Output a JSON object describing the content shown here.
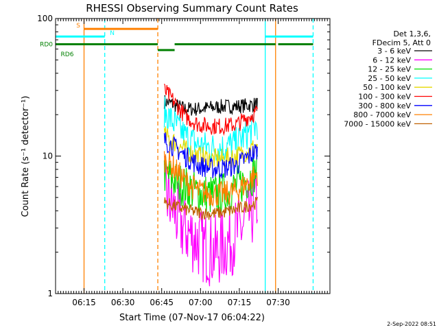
{
  "chart_data": {
    "type": "line",
    "title": "RHESSI Observing Summary Count Rates",
    "xlabel": "Start Time (07-Nov-17 06:04:22)",
    "ylabel": "Count Rate (s⁻¹ detector⁻¹)",
    "yscale": "log",
    "ylim": [
      1,
      100
    ],
    "xlim_minutes_after_0604": [
      0,
      106
    ],
    "x_ticks": [
      {
        "label": "06:15",
        "min": 11
      },
      {
        "label": "06:30",
        "min": 26
      },
      {
        "label": "06:45",
        "min": 41
      },
      {
        "label": "07:00",
        "min": 56
      },
      {
        "label": "07:15",
        "min": 71
      },
      {
        "label": "07:30",
        "min": 86
      }
    ],
    "y_ticks": [
      {
        "label": "1",
        "value": 1
      },
      {
        "label": "10",
        "value": 10
      },
      {
        "label": "100",
        "value": 100
      }
    ],
    "legend_header": [
      "Det 1,3,6,",
      "FDecim 5, Att 0"
    ],
    "legend_position": "right",
    "series": [
      {
        "name": "3 - 6 keV",
        "color": "#000000",
        "values": [
          [
            42,
            25
          ],
          [
            45,
            24
          ],
          [
            50,
            22
          ],
          [
            55,
            22
          ],
          [
            60,
            22.5
          ],
          [
            65,
            23
          ],
          [
            70,
            23
          ],
          [
            75,
            23.5
          ],
          [
            78,
            24
          ]
        ]
      },
      {
        "name": "6 - 12 keV",
        "color": "#ff00ff",
        "values": [
          [
            42,
            5.5
          ],
          [
            45,
            4.4
          ],
          [
            48,
            3.2
          ],
          [
            52,
            2.7
          ],
          [
            57,
            2.2
          ],
          [
            62,
            2.0
          ],
          [
            67,
            2.4
          ],
          [
            72,
            3.0
          ],
          [
            76,
            4.0
          ],
          [
            78,
            4.8
          ]
        ]
      },
      {
        "name": "12 - 25 keV",
        "color": "#00e000",
        "values": [
          [
            42,
            7.5
          ],
          [
            45,
            6.8
          ],
          [
            50,
            6.0
          ],
          [
            55,
            5.4
          ],
          [
            60,
            5.2
          ],
          [
            65,
            5.4
          ],
          [
            70,
            6.0
          ],
          [
            75,
            7.0
          ],
          [
            78,
            8.0
          ]
        ]
      },
      {
        "name": "25 - 50 keV",
        "color": "#00ffff",
        "values": [
          [
            42,
            21
          ],
          [
            45,
            18
          ],
          [
            50,
            14
          ],
          [
            55,
            12
          ],
          [
            60,
            11.5
          ],
          [
            65,
            11.5
          ],
          [
            70,
            12.5
          ],
          [
            75,
            15
          ],
          [
            78,
            17
          ]
        ]
      },
      {
        "name": "50 - 100 keV",
        "color": "#e6d800",
        "values": [
          [
            42,
            14
          ],
          [
            45,
            13
          ],
          [
            50,
            11
          ],
          [
            55,
            10
          ],
          [
            60,
            9.5
          ],
          [
            65,
            9.5
          ],
          [
            70,
            10
          ],
          [
            75,
            11
          ],
          [
            78,
            12
          ]
        ]
      },
      {
        "name": "100 - 300 keV",
        "color": "#ff0000",
        "values": [
          [
            42,
            30
          ],
          [
            45,
            26
          ],
          [
            50,
            19.5
          ],
          [
            55,
            17
          ],
          [
            60,
            16.5
          ],
          [
            65,
            16.5
          ],
          [
            70,
            17
          ],
          [
            75,
            19.5
          ],
          [
            78,
            21
          ]
        ]
      },
      {
        "name": "300 - 800 keV",
        "color": "#0000ff",
        "values": [
          [
            42,
            13
          ],
          [
            45,
            12
          ],
          [
            50,
            10
          ],
          [
            55,
            8.6
          ],
          [
            60,
            8.1
          ],
          [
            65,
            8.1
          ],
          [
            70,
            8.6
          ],
          [
            75,
            10
          ],
          [
            78,
            11
          ]
        ]
      },
      {
        "name": "800 - 7000 keV",
        "color": "#ff8000",
        "values": [
          [
            42,
            9.5
          ],
          [
            45,
            8.5
          ],
          [
            50,
            6.6
          ],
          [
            55,
            5.6
          ],
          [
            60,
            5.3
          ],
          [
            65,
            5.3
          ],
          [
            70,
            5.6
          ],
          [
            75,
            6.6
          ],
          [
            78,
            7.5
          ]
        ]
      },
      {
        "name": "7000 - 15000 keV",
        "color": "#c06000",
        "values": [
          [
            42,
            4.6
          ],
          [
            45,
            4.4
          ],
          [
            50,
            4.1
          ],
          [
            55,
            3.9
          ],
          [
            60,
            3.8
          ],
          [
            65,
            3.9
          ],
          [
            70,
            4.1
          ],
          [
            75,
            4.4
          ],
          [
            78,
            4.6
          ]
        ]
      }
    ],
    "flag_bars": [
      {
        "label": "S",
        "color": "#ff8000",
        "segments": [
          [
            11,
            39.5
          ]
        ],
        "level": 84,
        "label_at": 8
      },
      {
        "label": "N",
        "color": "#00ffff",
        "segments": [
          [
            0,
            19
          ],
          [
            81,
            99.5
          ]
        ],
        "level": 74,
        "label_at": 21
      },
      {
        "label": "RD0",
        "color": "#008000",
        "segments": [
          [
            0,
            39.5
          ],
          [
            46,
            85
          ],
          [
            86,
            99.5
          ]
        ],
        "level": 65,
        "label_at": -1
      },
      {
        "label": "RD6",
        "color": "#008000",
        "segments": [
          [
            39.5,
            46
          ]
        ],
        "level": 59,
        "label_at": 2
      }
    ],
    "vlines": [
      {
        "min": 11,
        "color": "#ff8000",
        "dash": false
      },
      {
        "min": 19,
        "color": "#00ffff",
        "dash": true
      },
      {
        "min": 39.5,
        "color": "#ff8000",
        "dash": true
      },
      {
        "min": 81,
        "color": "#00ffff",
        "dash": false
      },
      {
        "min": 85,
        "color": "#ff8000",
        "dash": false
      },
      {
        "min": 99.5,
        "color": "#00ffff",
        "dash": true
      }
    ]
  },
  "footer": {
    "date_stamp": "2-Sep-2022 08:51"
  }
}
